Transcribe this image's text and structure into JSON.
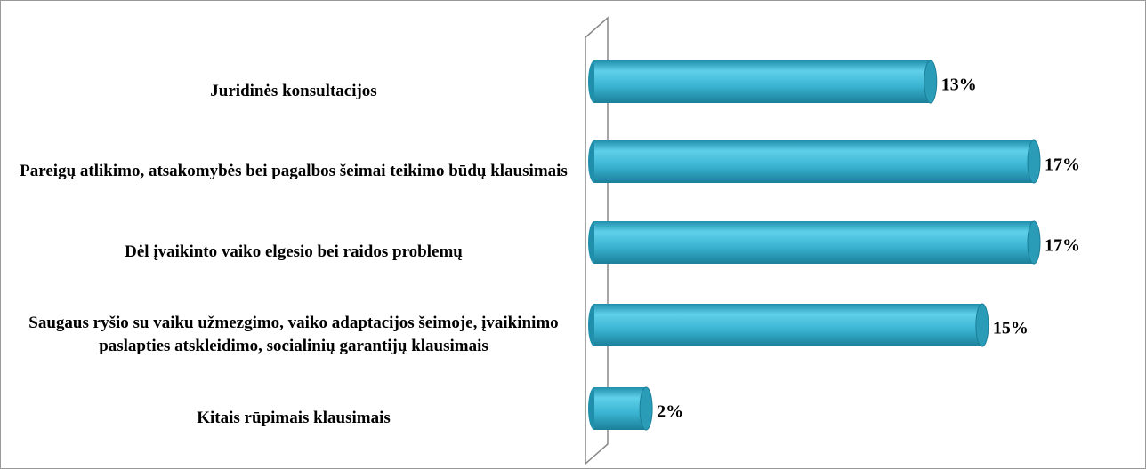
{
  "chart_data": {
    "type": "bar",
    "orientation": "horizontal",
    "categories": [
      "Juridinės konsultacijos",
      "Pareigų atlikimo, atsakomybės bei pagalbos šeimai teikimo būdų klausimais",
      "Dėl įvaikinto vaiko elgesio bei raidos problemų",
      "Saugaus ryšio su vaiku užmezgimo, vaiko adaptacijos šeimoje, įvaikinimo paslapties atskleidimo, socialinių garantijų klausimais",
      "Kitais rūpimais klausimais"
    ],
    "values": [
      13,
      17,
      17,
      15,
      2
    ],
    "value_labels": [
      "13%",
      "17%",
      "17%",
      "15%",
      "2%"
    ],
    "color": "#3ab4d2"
  }
}
